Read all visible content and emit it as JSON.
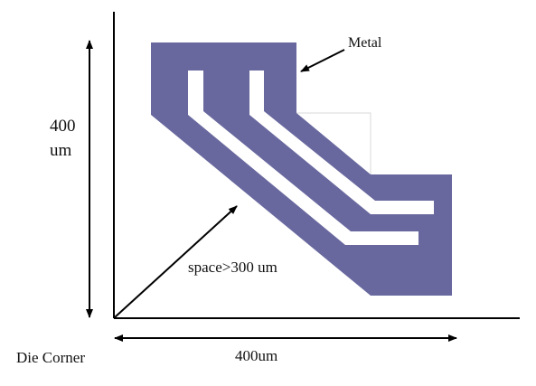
{
  "labels": {
    "metal": "Metal",
    "height_value": "400",
    "height_unit": "um",
    "spacing": "space>300 um",
    "width": "400um",
    "die_corner": "Die Corner"
  },
  "colors": {
    "metal_fill": "#68689f",
    "slot_fill": "#ffffff",
    "axis_line": "#000000",
    "guide_line": "#d9d9d9"
  }
}
